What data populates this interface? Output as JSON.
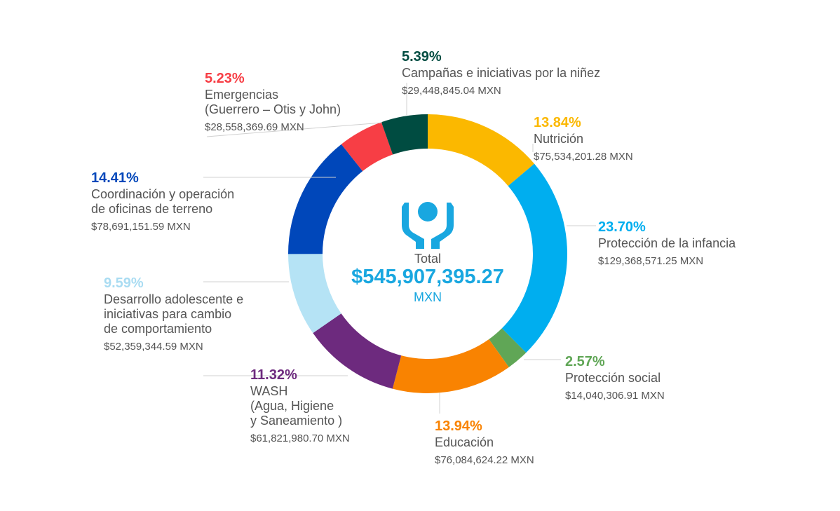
{
  "chart_data": {
    "type": "pie",
    "center": {
      "label": "Total",
      "value": "$545,907,395.27",
      "unit": "MXN"
    },
    "slices": [
      {
        "key": "nutricion",
        "percent": 13.84,
        "percent_label": "13.84%",
        "name": "Nutrición",
        "amount": "$75,534,201.28 MXN",
        "color": "#fbb800"
      },
      {
        "key": "proteccion-infancia",
        "percent": 23.7,
        "percent_label": "23.70%",
        "name": "Protección de la infancia",
        "amount": "$129,368,571.25 MXN",
        "color": "#00aeef"
      },
      {
        "key": "proteccion-social",
        "percent": 2.57,
        "percent_label": "2.57%",
        "name": "Protección social",
        "amount": "$14,040,306.91 MXN",
        "color": "#60a656"
      },
      {
        "key": "educacion",
        "percent": 13.94,
        "percent_label": "13.94%",
        "name": "Educación",
        "amount": "$76,084,624.22 MXN",
        "color": "#f98301"
      },
      {
        "key": "wash",
        "percent": 11.32,
        "percent_label": "11.32%",
        "name": "WASH\n(Agua, Higiene\ny Saneamiento )",
        "amount": "$61,821,980.70 MXN",
        "color": "#6d2a7e"
      },
      {
        "key": "adolescente",
        "percent": 9.59,
        "percent_label": "9.59%",
        "name": "Desarrollo adolescente e\niniciativas para cambio\nde comportamiento",
        "amount": "$52,359,344.59 MXN",
        "color": "#b5e3f5"
      },
      {
        "key": "coordinacion",
        "percent": 14.41,
        "percent_label": "14.41%",
        "name": "Coordinación y operación\nde oficinas de terreno",
        "amount": "$78,691,151.59 MXN",
        "color": "#0047ba"
      },
      {
        "key": "emergencias",
        "percent": 5.23,
        "percent_label": "5.23%",
        "name": "Emergencias\n(Guerrero – Otis y John)",
        "amount": "$28,558,369.69 MXN",
        "color": "#f73e45"
      },
      {
        "key": "campanas",
        "percent": 5.39,
        "percent_label": "5.39%",
        "name": "Campañas e iniciativas por la niñez",
        "amount": "$29,448,845.04 MXN",
        "color": "#004c41"
      }
    ]
  }
}
